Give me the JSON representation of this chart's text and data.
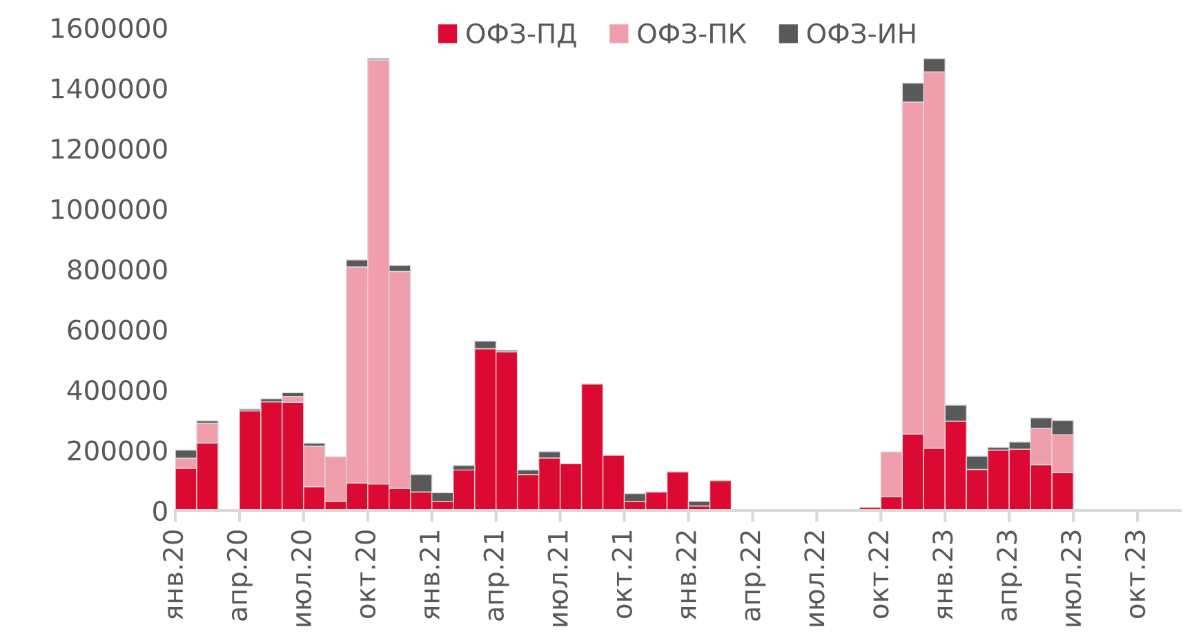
{
  "chart_data": {
    "type": "bar",
    "stacked": true,
    "categories": [
      "янв.20",
      null,
      null,
      "апр.20",
      null,
      null,
      "июл.20",
      null,
      null,
      "окт.20",
      null,
      null,
      "янв.21",
      null,
      null,
      "апр.21",
      null,
      null,
      "июл.21",
      null,
      null,
      "окт.21",
      null,
      null,
      "янв.22",
      null,
      null,
      "апр.22",
      null,
      null,
      "июл.22",
      null,
      null,
      "окт.22",
      null,
      null,
      "янв.23",
      null,
      null,
      "апр.23",
      null,
      null,
      "июл.23",
      null,
      null,
      "окт.23",
      null
    ],
    "series": [
      {
        "name": "ОФЗ-ПД",
        "color": "#dc0a32",
        "values": [
          140000,
          224000,
          0,
          330000,
          360000,
          358000,
          79000,
          30000,
          91000,
          88000,
          73000,
          61000,
          30000,
          134000,
          536000,
          526000,
          119000,
          174000,
          155000,
          419000,
          183000,
          30000,
          61000,
          128000,
          15000,
          99000,
          0,
          0,
          0,
          0,
          0,
          0,
          10000,
          46000,
          253000,
          206000,
          296000,
          136000,
          200000,
          203000,
          152000,
          125000,
          0,
          0,
          0,
          0,
          0
        ]
      },
      {
        "name": "ОФЗ-ПК",
        "color": "#f09eac",
        "values": [
          33000,
          65000,
          0,
          0,
          0,
          20000,
          134000,
          148000,
          716000,
          1405000,
          719000,
          0,
          0,
          0,
          0,
          0,
          0,
          0,
          0,
          0,
          0,
          0,
          0,
          0,
          0,
          0,
          0,
          0,
          0,
          0,
          0,
          0,
          0,
          148000,
          1100000,
          1247000,
          0,
          0,
          0,
          0,
          120000,
          126000,
          0,
          0,
          0,
          0,
          0
        ]
      },
      {
        "name": "ОФЗ-ИН",
        "color": "#595959",
        "values": [
          27000,
          8000,
          0,
          6000,
          10000,
          12000,
          10000,
          0,
          23000,
          5000,
          20000,
          58000,
          29000,
          15000,
          25000,
          5000,
          15000,
          21000,
          0,
          0,
          0,
          26000,
          0,
          0,
          15000,
          null,
          0,
          0,
          0,
          0,
          0,
          0,
          0,
          0,
          63000,
          44000,
          53000,
          44000,
          9000,
          24000,
          35000,
          47000,
          0,
          0,
          0,
          0,
          0
        ]
      }
    ],
    "ylim": [
      0,
      1600000
    ],
    "yticks": [
      0,
      200000,
      400000,
      600000,
      800000,
      1000000,
      1200000,
      1400000,
      1600000
    ],
    "grid": false,
    "legend": "top"
  }
}
